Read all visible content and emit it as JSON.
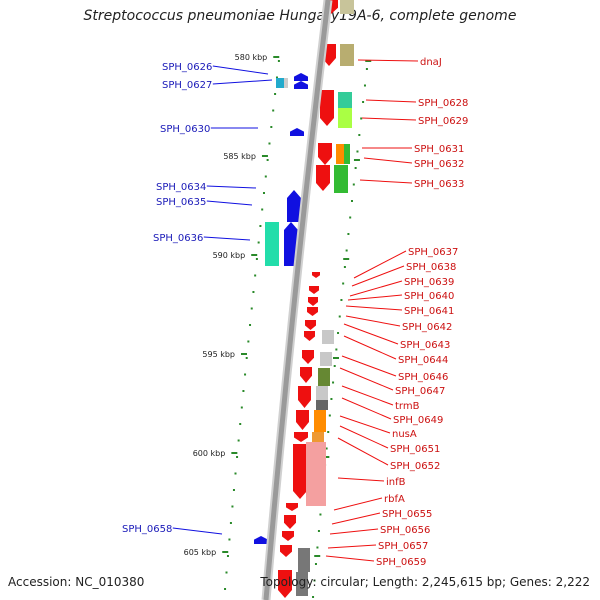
{
  "title": "Streptococcus pneumoniae Hungary19A-6, complete genome",
  "footer": {
    "accession": "Accession: NC_010380",
    "summary": "Topology: circular; Length: 2,245,615 bp; Genes: 2,222"
  },
  "colors": {
    "axis": "#9a9a9a",
    "left_strand": "#1010e0",
    "right_strand": "#ee1010",
    "left_label": "#1a1ab8",
    "right_label": "#cc1111",
    "tick": "#2a8a2a"
  },
  "ticks": [
    {
      "label": "580 kbp"
    },
    {
      "label": "585 kbp"
    },
    {
      "label": "590 kbp"
    },
    {
      "label": "595 kbp"
    },
    {
      "label": "600 kbp"
    },
    {
      "label": "605 kbp"
    }
  ],
  "genes_left": [
    "SPH_0626",
    "SPH_0627",
    "SPH_0630",
    "SPH_0634",
    "SPH_0635",
    "SPH_0636",
    "SPH_0658"
  ],
  "genes_right": [
    "dnaJ",
    "SPH_0628",
    "SPH_0629",
    "SPH_0631",
    "SPH_0632",
    "SPH_0633",
    "SPH_0637",
    "SPH_0638",
    "SPH_0639",
    "SPH_0640",
    "SPH_0641",
    "SPH_0642",
    "SPH_0643",
    "SPH_0644",
    "SPH_0646",
    "SPH_0647",
    "trmB",
    "SPH_0649",
    "nusA",
    "SPH_0651",
    "SPH_0652",
    "infB",
    "rbfA",
    "SPH_0655",
    "SPH_0656",
    "SPH_0657",
    "SPH_0659"
  ]
}
